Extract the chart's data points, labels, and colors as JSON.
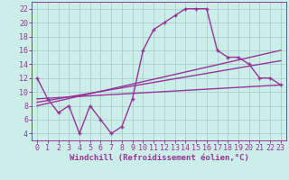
{
  "background_color": "#cceee8",
  "grid_color": "#aacccc",
  "line_color": "#993399",
  "xlabel": "Windchill (Refroidissement éolien,°C)",
  "xlim": [
    -0.5,
    23.5
  ],
  "ylim": [
    3,
    23
  ],
  "yticks": [
    4,
    6,
    8,
    10,
    12,
    14,
    16,
    18,
    20,
    22
  ],
  "xticks": [
    0,
    1,
    2,
    3,
    4,
    5,
    6,
    7,
    8,
    9,
    10,
    11,
    12,
    13,
    14,
    15,
    16,
    17,
    18,
    19,
    20,
    21,
    22,
    23
  ],
  "main_x": [
    0,
    1,
    2,
    3,
    4,
    5,
    6,
    7,
    8,
    9,
    10,
    11,
    12,
    13,
    14,
    15,
    16,
    17,
    18,
    19,
    20,
    21,
    22,
    23
  ],
  "main_y": [
    12,
    9,
    7,
    8,
    4,
    8,
    6,
    4,
    5,
    9,
    16,
    19,
    20,
    21,
    22,
    22,
    22,
    16,
    15,
    15,
    14,
    12,
    12,
    11
  ],
  "line1_x": [
    0,
    23
  ],
  "line1_y": [
    9,
    11
  ],
  "line2_x": [
    0,
    23
  ],
  "line2_y": [
    8.5,
    14.5
  ],
  "line3_x": [
    0,
    23
  ],
  "line3_y": [
    8.0,
    16.0
  ],
  "marker_size": 3,
  "linewidth": 1.0,
  "xlabel_fontsize": 6.5,
  "tick_fontsize": 6
}
